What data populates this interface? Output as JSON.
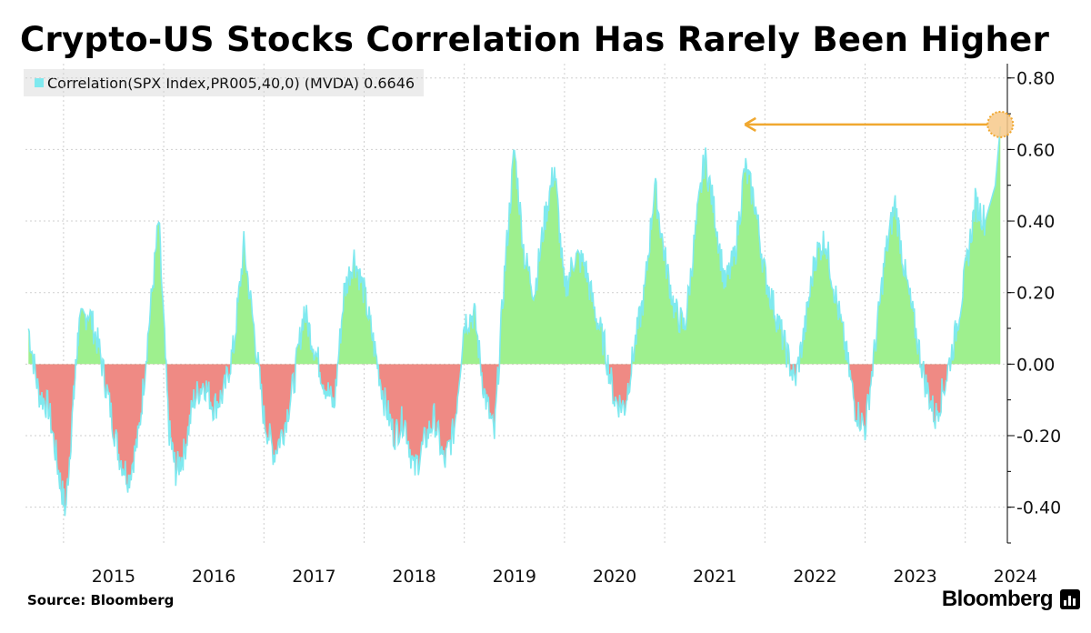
{
  "title": "Crypto-US Stocks Correlation Has Rarely Been Higher",
  "legend": {
    "label": "Correlation(SPX Index,PR005,40,0) (MVDA) 0.6646",
    "color": "#7fe9ef"
  },
  "source": "Source: Bloomberg",
  "brand": "Bloomberg",
  "colors": {
    "positive_fill": "#9ef08e",
    "negative_fill": "#ef8a84",
    "line": "#7fe9ef",
    "annotation": "#f0a830",
    "grid": "#cfcfcf"
  },
  "chart_data": {
    "type": "area",
    "series": [
      {
        "name": "Correlation(SPX Index,PR005,40,0) (MVDA)",
        "last_value": 0.6646
      }
    ],
    "x_tick_labels": [
      "2015",
      "2016",
      "2017",
      "2018",
      "2019",
      "2020",
      "2021",
      "2022",
      "2023",
      "2024"
    ],
    "y_tick_labels": [
      "0.80",
      "0.60",
      "0.40",
      "0.20",
      "0.00",
      "-0.20",
      "-0.40"
    ],
    "y_ticks": [
      0.8,
      0.6,
      0.4,
      0.2,
      0.0,
      -0.2,
      -0.4
    ],
    "ylim": [
      -0.5,
      0.84
    ],
    "xlim": [
      2014.62,
      2024.42
    ],
    "grid": true,
    "y_axis_side": "right",
    "x": [
      2014.65,
      2014.75,
      2014.85,
      2014.95,
      2015.02,
      2015.1,
      2015.15,
      2015.25,
      2015.35,
      2015.45,
      2015.55,
      2015.65,
      2015.75,
      2015.85,
      2015.95,
      2016.05,
      2016.12,
      2016.2,
      2016.3,
      2016.4,
      2016.5,
      2016.6,
      2016.7,
      2016.8,
      2016.9,
      2017.0,
      2017.1,
      2017.2,
      2017.3,
      2017.4,
      2017.5,
      2017.6,
      2017.7,
      2017.8,
      2017.9,
      2018.0,
      2018.1,
      2018.2,
      2018.3,
      2018.4,
      2018.5,
      2018.6,
      2018.7,
      2018.8,
      2018.9,
      2019.0,
      2019.1,
      2019.2,
      2019.3,
      2019.4,
      2019.5,
      2019.6,
      2019.7,
      2019.8,
      2019.9,
      2020.0,
      2020.1,
      2020.2,
      2020.3,
      2020.4,
      2020.5,
      2020.6,
      2020.7,
      2020.8,
      2020.9,
      2021.0,
      2021.1,
      2021.2,
      2021.3,
      2021.4,
      2021.5,
      2021.6,
      2021.7,
      2021.8,
      2021.9,
      2022.0,
      2022.1,
      2022.2,
      2022.3,
      2022.4,
      2022.5,
      2022.6,
      2022.7,
      2022.8,
      2022.9,
      2023.0,
      2023.1,
      2023.2,
      2023.3,
      2023.4,
      2023.5,
      2023.6,
      2023.7,
      2023.8,
      2023.9,
      2024.0,
      2024.1,
      2024.2,
      2024.3,
      2024.35
    ],
    "y": [
      0.1,
      -0.08,
      -0.12,
      -0.3,
      -0.41,
      -0.1,
      0.1,
      0.15,
      0.05,
      -0.1,
      -0.25,
      -0.32,
      -0.2,
      0.1,
      0.4,
      -0.18,
      -0.3,
      -0.25,
      -0.1,
      -0.05,
      -0.12,
      -0.08,
      0.05,
      0.33,
      0.1,
      -0.15,
      -0.25,
      -0.18,
      -0.05,
      0.15,
      0.05,
      -0.05,
      -0.12,
      0.2,
      0.3,
      0.2,
      0.05,
      -0.1,
      -0.2,
      -0.15,
      -0.3,
      -0.22,
      -0.15,
      -0.28,
      -0.18,
      0.12,
      0.14,
      -0.08,
      -0.2,
      0.25,
      0.6,
      0.3,
      0.2,
      0.4,
      0.55,
      0.2,
      0.3,
      0.28,
      0.15,
      0.05,
      -0.1,
      -0.12,
      0.05,
      0.2,
      0.5,
      0.3,
      0.15,
      0.1,
      0.35,
      0.58,
      0.42,
      0.22,
      0.3,
      0.55,
      0.45,
      0.25,
      0.15,
      0.05,
      -0.05,
      0.1,
      0.3,
      0.35,
      0.2,
      0.05,
      -0.12,
      -0.18,
      0.05,
      0.3,
      0.45,
      0.25,
      0.1,
      -0.05,
      -0.15,
      -0.05,
      0.08,
      0.25,
      0.45,
      0.4,
      0.5,
      0.6646
    ],
    "annotations": [
      {
        "type": "arrow",
        "from": [
          2024.35,
          0.67
        ],
        "to": [
          2021.8,
          0.67
        ],
        "color": "#f0a830"
      },
      {
        "type": "marker",
        "at": [
          2024.35,
          0.67
        ],
        "color": "#f0a830"
      }
    ]
  }
}
